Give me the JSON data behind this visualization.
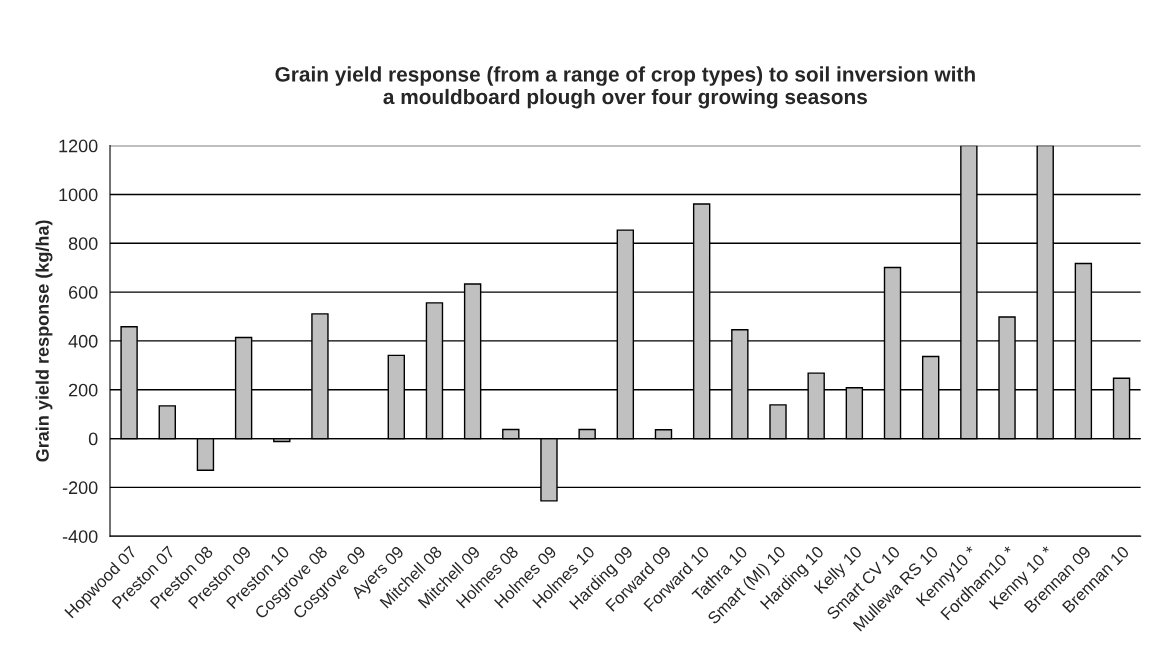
{
  "chart_data": {
    "type": "bar",
    "title": "Grain yield response (from a range of crop types) to soil inversion with\na mouldboard plough over four growing seasons",
    "ylabel": "Grain yield response (kg/ha)",
    "categories": [
      "Hopwood 07",
      "Preston 07",
      "Preston 08",
      "Preston 09",
      "Preston 10",
      "Cosgrove 08",
      "Cosgrove 09",
      "Ayers 09",
      "Mitchell 08",
      "Mitchell 09",
      "Holmes 08",
      "Holmes 09",
      "Holmes 10",
      "Harding 09",
      "Forward 09",
      "Forward 10",
      "Tathra 10",
      "Smart (MI) 10",
      "Harding 10",
      "Kelly 10",
      "Smart CV 10",
      "Mullewa RS 10",
      "Kenny10 *",
      "Fordham10 *",
      "Kenny 10 *",
      "Brennan 09",
      "Brennan 10"
    ],
    "values": [
      458,
      134,
      -130,
      414,
      -12,
      511,
      null,
      341,
      556,
      633,
      37,
      -255,
      37,
      854,
      36,
      961,
      446,
      138,
      268,
      208,
      701,
      336,
      1200,
      498,
      1200,
      717,
      247
    ],
    "color": "#c0c0c0",
    "ylim": [
      -400,
      1200
    ],
    "yticks": [
      -400,
      -200,
      0,
      200,
      400,
      600,
      800,
      1000,
      1200
    ],
    "grid": "y"
  }
}
